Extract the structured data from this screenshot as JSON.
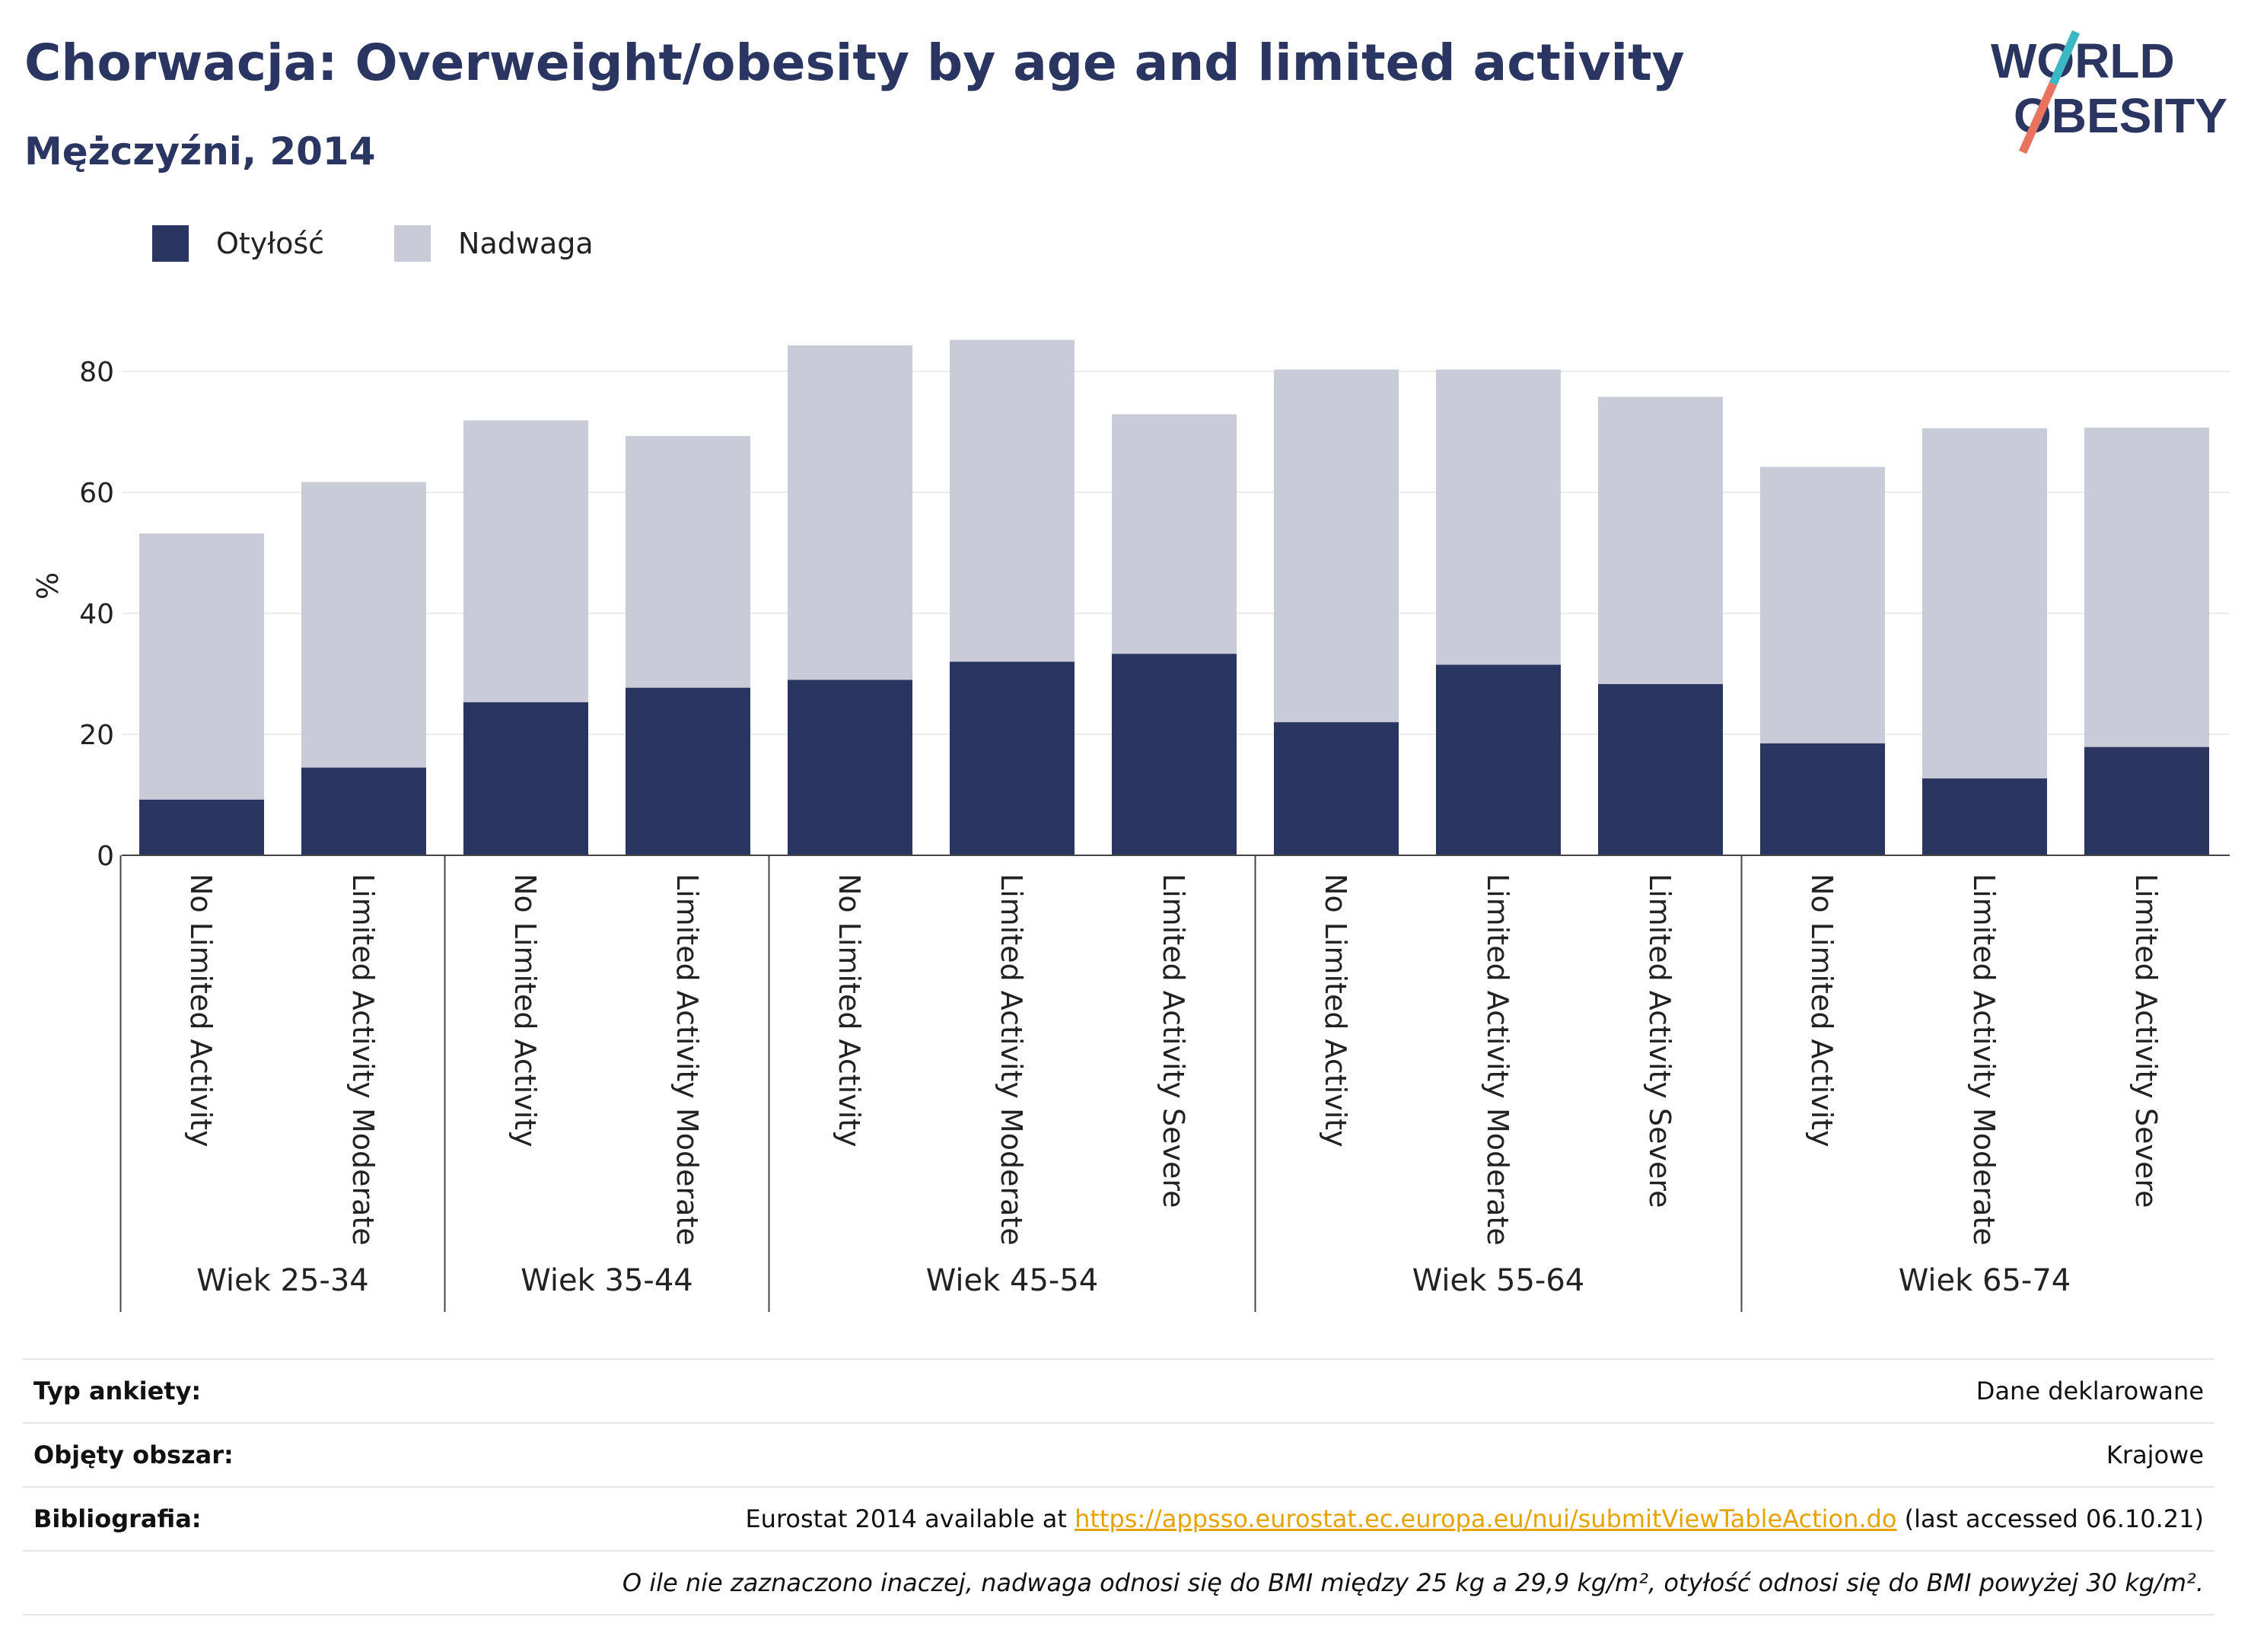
{
  "header": {
    "title": "Chorwacja: Overweight/obesity by age and limited activity",
    "subtitle": "Mężczyźni, 2014",
    "logo_line1": "WORLD",
    "logo_line2": "OBESITY"
  },
  "legend": {
    "obesity_label": "Otyłość",
    "overweight_label": "Nadwaga"
  },
  "colors": {
    "obesity": "#2a3561",
    "overweight": "#c9cbd8",
    "accent_teal": "#3bb8c4",
    "accent_coral": "#e8735f",
    "link": "#e5a300"
  },
  "chart_data": {
    "type": "bar",
    "stacked": true,
    "ylabel": "%",
    "ylim": [
      0,
      90
    ],
    "yticks": [
      0,
      20,
      40,
      60,
      80
    ],
    "grid": true,
    "legend_position": "top-left",
    "groups": [
      {
        "label": "Wiek 25-34",
        "categories": [
          "No Limited Activity",
          "Limited Activity Moderate"
        ]
      },
      {
        "label": "Wiek 35-44",
        "categories": [
          "No Limited Activity",
          "Limited Activity Moderate"
        ]
      },
      {
        "label": "Wiek 45-54",
        "categories": [
          "No Limited Activity",
          "Limited Activity Moderate",
          "Limited Activity Severe"
        ]
      },
      {
        "label": "Wiek 55-64",
        "categories": [
          "No Limited Activity",
          "Limited Activity Moderate",
          "Limited Activity Severe"
        ]
      },
      {
        "label": "Wiek 65-74",
        "categories": [
          "No Limited Activity",
          "Limited Activity Moderate",
          "Limited Activity Severe"
        ]
      }
    ],
    "series": [
      {
        "name": "Otyłość",
        "values": [
          9.2,
          14.5,
          25.3,
          27.7,
          29.0,
          32.0,
          33.3,
          22.0,
          31.5,
          28.3,
          18.5,
          12.7,
          17.9
        ]
      },
      {
        "name": "Nadwaga",
        "values": [
          44.0,
          47.2,
          46.6,
          41.6,
          55.3,
          53.2,
          39.6,
          58.3,
          48.8,
          47.5,
          45.7,
          57.9,
          52.8
        ]
      }
    ]
  },
  "info": {
    "survey_label": "Typ ankiety:",
    "survey_value": "Dane deklarowane",
    "area_label": "Objęty obszar:",
    "area_value": "Krajowe",
    "biblio_label": "Bibliografia:",
    "biblio_prefix": "Eurostat 2014 available at ",
    "biblio_link": "https://appsso.eurostat.ec.europa.eu/nui/submitViewTableAction.do",
    "biblio_suffix": " (last accessed 06.10.21)",
    "note": "O ile nie zaznaczono inaczej, nadwaga odnosi się do BMI między 25 kg a 29,9 kg/m², otyłość odnosi się do BMI powyżej 30 kg/m²."
  }
}
